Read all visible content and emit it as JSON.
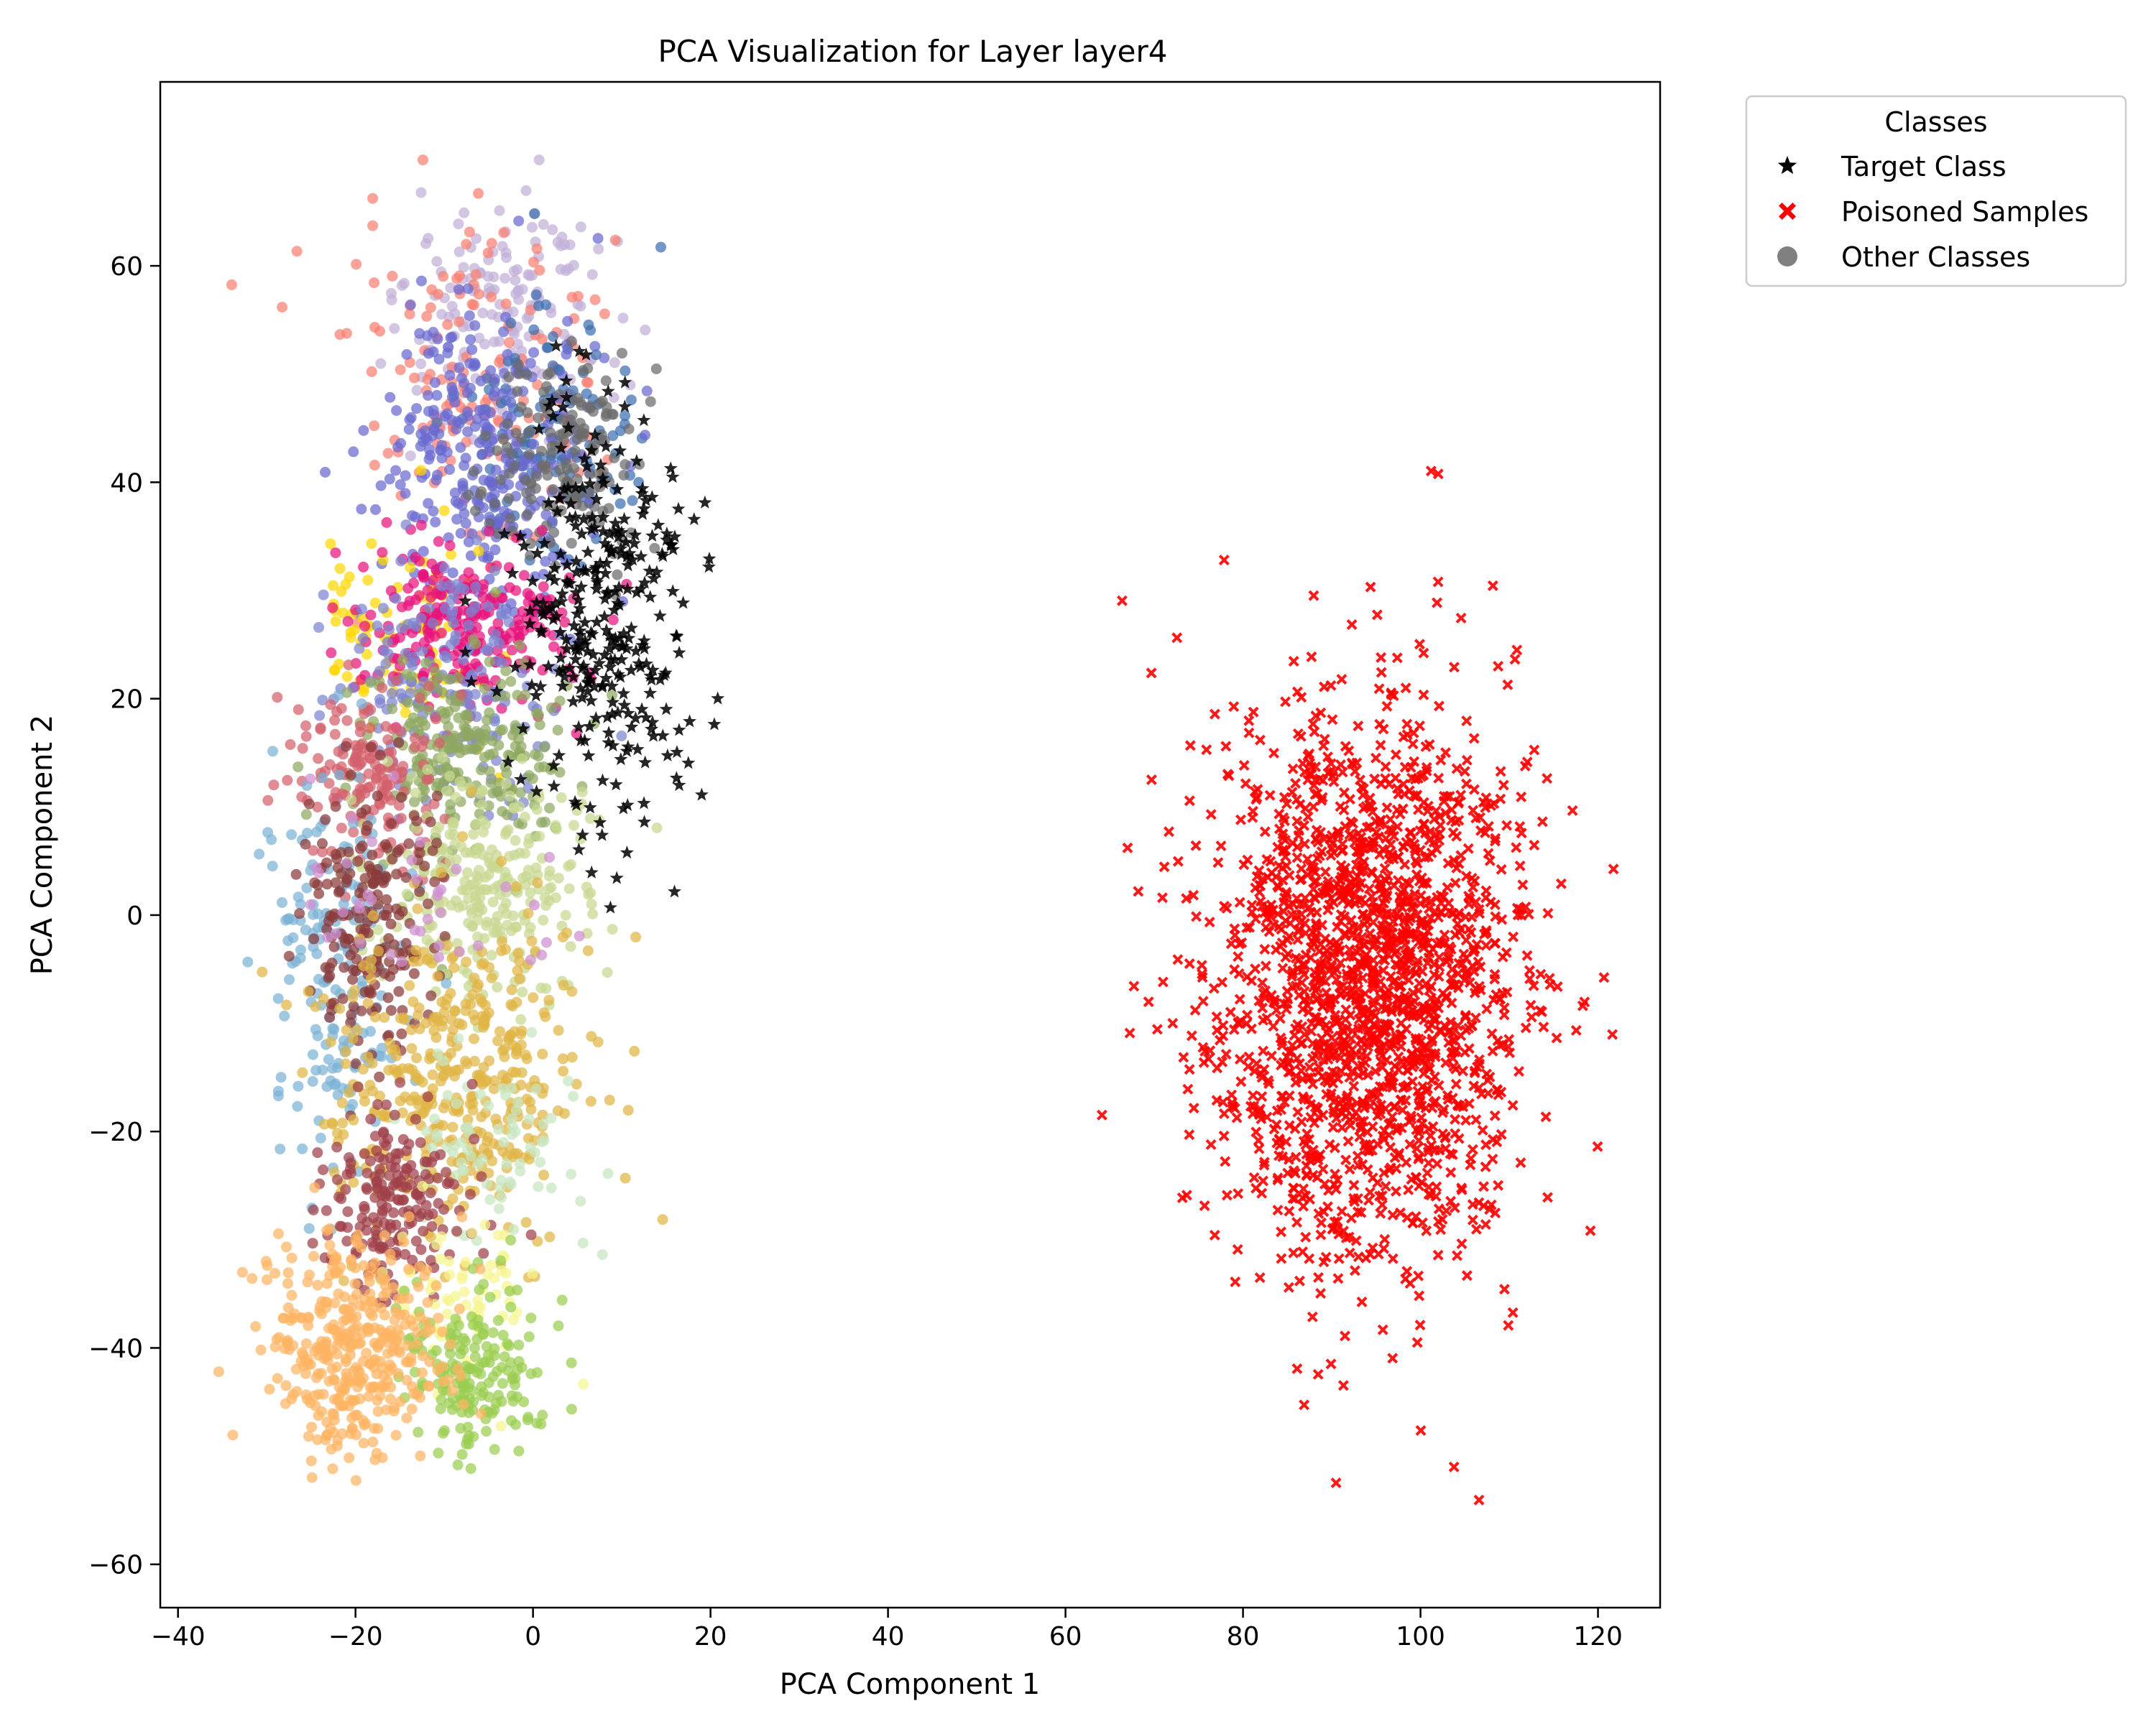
{
  "chart_data": {
    "type": "scatter",
    "title": "PCA Visualization for Layer layer4",
    "xlabel": "PCA Component 1",
    "ylabel": "PCA Component 2",
    "xlim": [
      -42,
      127
    ],
    "ylim": [
      -64,
      77
    ],
    "x_ticks": [
      -40,
      -20,
      0,
      20,
      40,
      60,
      80,
      100,
      120
    ],
    "y_ticks": [
      -60,
      -40,
      -20,
      0,
      20,
      40,
      60
    ],
    "x_tick_labels": [
      "−40",
      "−20",
      "0",
      "20",
      "40",
      "60",
      "80",
      "100",
      "120"
    ],
    "y_tick_labels": [
      "−60",
      "−40",
      "−20",
      "0",
      "20",
      "40",
      "60"
    ],
    "grid": false,
    "legend": {
      "title": "Classes",
      "placement": "outside-top-right",
      "entries": [
        {
          "label": "Target Class",
          "marker": "star",
          "color": "#000000"
        },
        {
          "label": "Poisoned Samples",
          "marker": "x",
          "color": "#ff0000"
        },
        {
          "label": "Other Classes",
          "marker": "circle",
          "color": "#808080"
        }
      ]
    },
    "series": [
      {
        "name": "Target Class",
        "marker": "star",
        "color": "#000000",
        "cluster": {
          "cx": 8,
          "cy": 28,
          "sx": 5,
          "sy": 10,
          "n": 320
        }
      },
      {
        "name": "Poisoned Samples",
        "marker": "x",
        "color": "#ff0000",
        "cluster": {
          "cx": 94,
          "cy": -6,
          "sx": 9,
          "sy": 13,
          "n": 1800
        }
      },
      {
        "name": "Other Classes",
        "marker": "circle",
        "groups": [
          {
            "color": "#c2b0d8",
            "cx": -3,
            "cy": 55,
            "sx": 6,
            "sy": 6,
            "n": 160
          },
          {
            "color": "#fa8072",
            "cx": -6,
            "cy": 48,
            "sx": 7,
            "sy": 7,
            "n": 150
          },
          {
            "color": "#3d6fb0",
            "cx": 2,
            "cy": 45,
            "sx": 5,
            "sy": 6,
            "n": 120
          },
          {
            "color": "#6a6ad0",
            "cx": -6,
            "cy": 42,
            "sx": 6,
            "sy": 7,
            "n": 300
          },
          {
            "color": "#6b6b6b",
            "cx": 4,
            "cy": 42,
            "sx": 4,
            "sy": 5,
            "n": 160
          },
          {
            "color": "#ffd700",
            "cx": -14,
            "cy": 27,
            "sx": 5,
            "sy": 5,
            "n": 90
          },
          {
            "color": "#e8137d",
            "cx": -8,
            "cy": 27,
            "sx": 6,
            "sy": 4,
            "n": 260
          },
          {
            "color": "#7d83d0",
            "cx": -10,
            "cy": 22,
            "sx": 6,
            "sy": 6,
            "n": 180
          },
          {
            "color": "#8fa860",
            "cx": -8,
            "cy": 15,
            "sx": 6,
            "sy": 5,
            "n": 240
          },
          {
            "color": "#d4606b",
            "cx": -18,
            "cy": 13,
            "sx": 4,
            "sy": 4,
            "n": 160
          },
          {
            "color": "#c8d890",
            "cx": -6,
            "cy": 3,
            "sx": 6,
            "sy": 5,
            "n": 280
          },
          {
            "color": "#7cb3d4",
            "cx": -22,
            "cy": -6,
            "sx": 4,
            "sy": 9,
            "n": 180
          },
          {
            "color": "#8b3a3a",
            "cx": -18,
            "cy": 0,
            "sx": 4,
            "sy": 6,
            "n": 200
          },
          {
            "color": "#e0b545",
            "cx": -9,
            "cy": -15,
            "sx": 7,
            "sy": 7,
            "n": 420
          },
          {
            "color": "#c8e6c0",
            "cx": -5,
            "cy": -22,
            "sx": 5,
            "sy": 5,
            "n": 80
          },
          {
            "color": "#a0404a",
            "cx": -16,
            "cy": -27,
            "sx": 4,
            "sy": 4,
            "n": 200
          },
          {
            "color": "#f5f590",
            "cx": -8,
            "cy": -36,
            "sx": 4,
            "sy": 4,
            "n": 70
          },
          {
            "color": "#9acd50",
            "cx": -6,
            "cy": -42,
            "sx": 4,
            "sy": 4,
            "n": 180
          },
          {
            "color": "#fdb462",
            "cx": -20,
            "cy": -40,
            "sx": 5,
            "sy": 5,
            "n": 380
          },
          {
            "color": "#cf8fd0",
            "cx": -12,
            "cy": 2,
            "sx": 8,
            "sy": 5,
            "n": 40
          }
        ]
      }
    ]
  }
}
